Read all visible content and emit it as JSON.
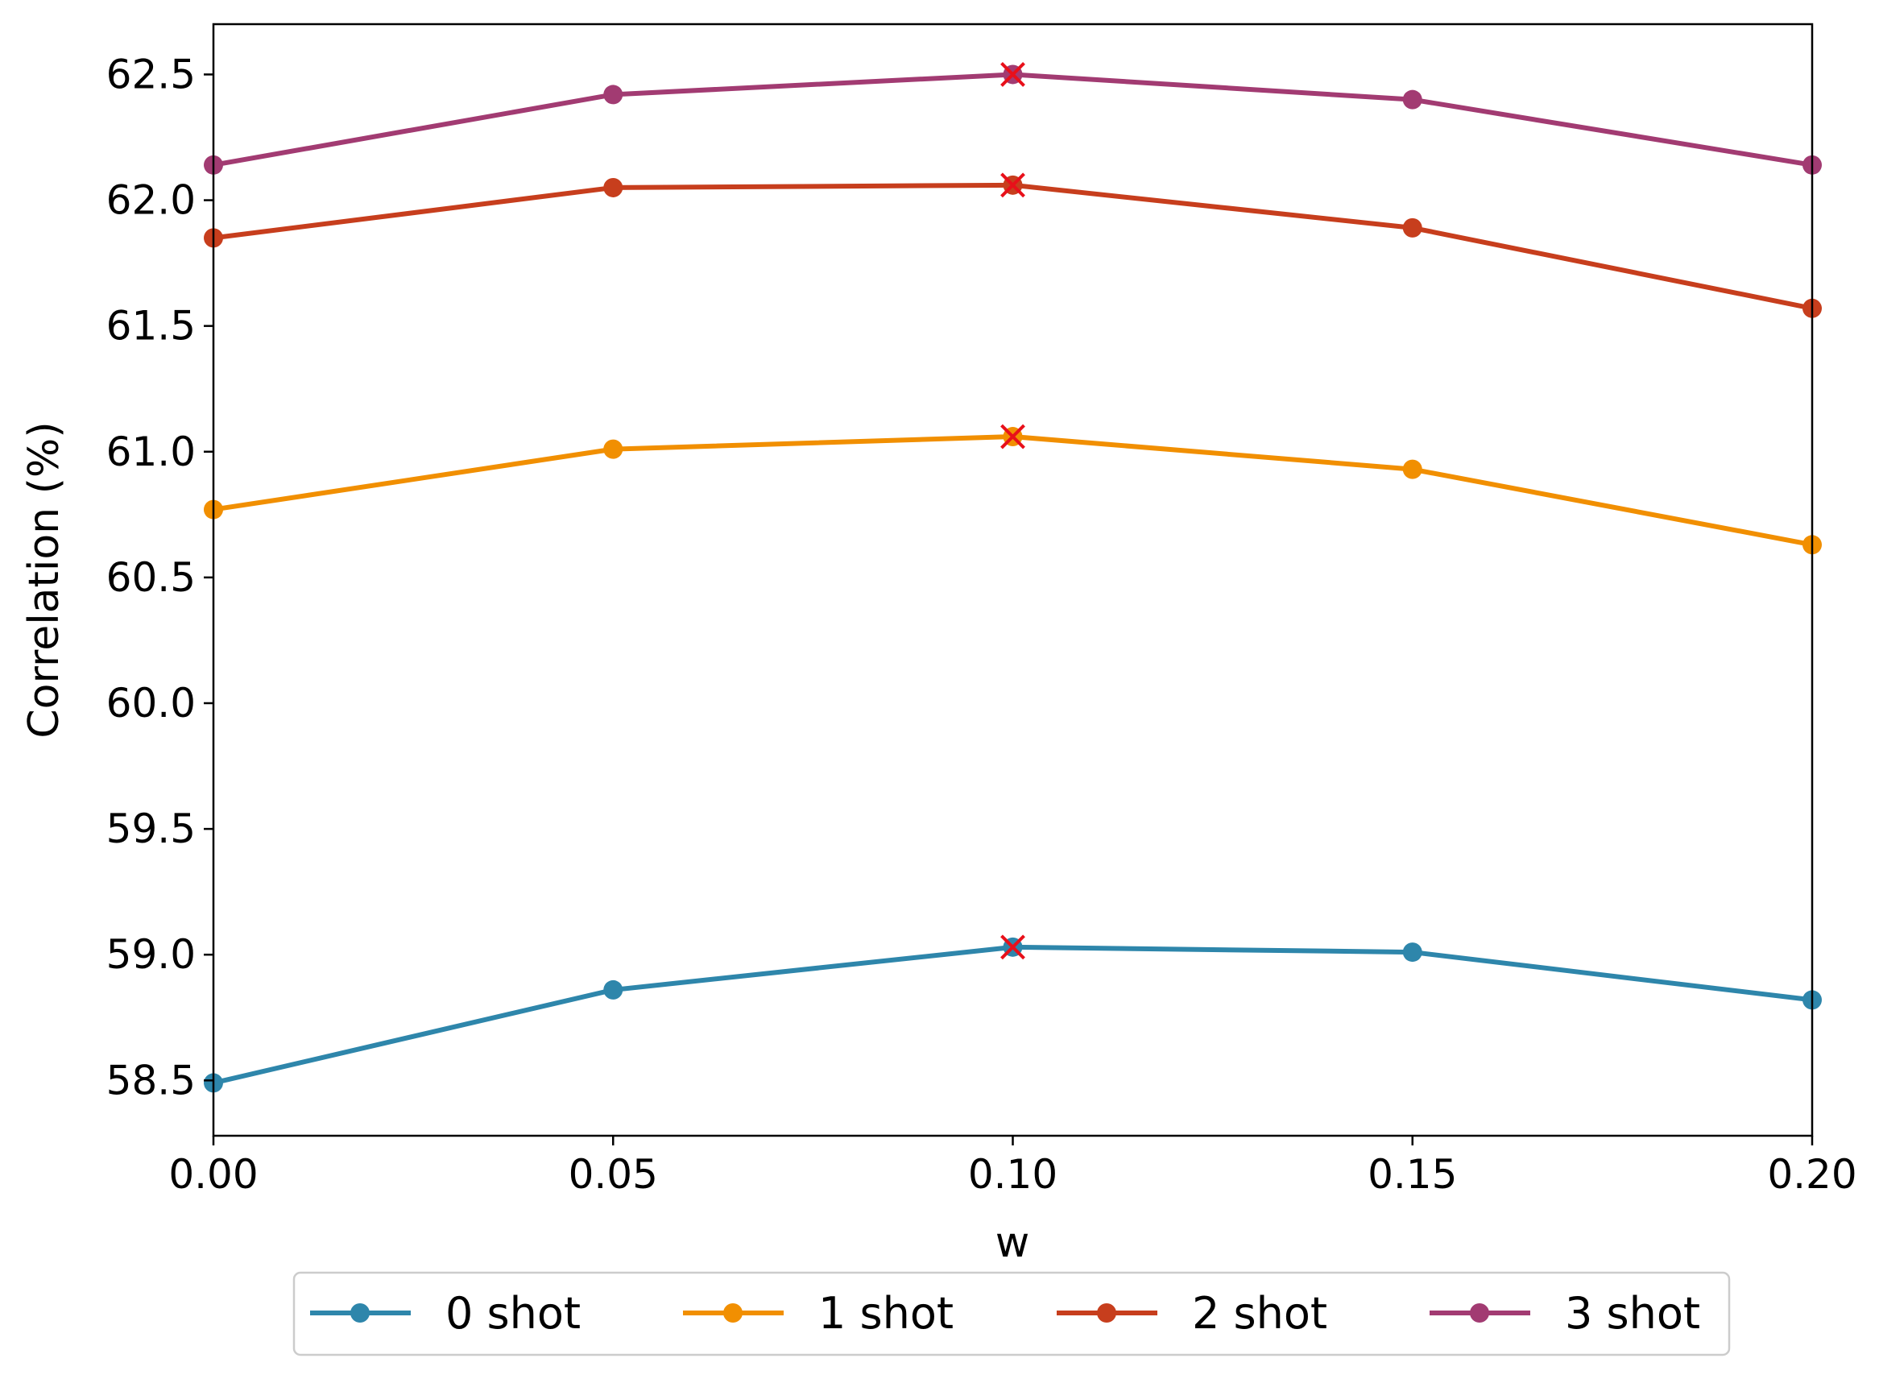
{
  "chart_data": {
    "type": "line",
    "title": "",
    "xlabel": "w",
    "ylabel": "Correlation (%)",
    "x": [
      0.0,
      0.05,
      0.1,
      0.15,
      0.2
    ],
    "x_tick_labels": [
      "0.00",
      "0.05",
      "0.10",
      "0.15",
      "0.20"
    ],
    "y_tick_values": [
      58.5,
      59.0,
      59.5,
      60.0,
      60.5,
      61.0,
      61.5,
      62.0,
      62.5
    ],
    "y_tick_labels": [
      "58.5",
      "59.0",
      "59.5",
      "60.0",
      "60.5",
      "61.0",
      "61.5",
      "62.0",
      "62.5"
    ],
    "xlim": [
      0.0,
      0.2
    ],
    "ylim": [
      58.28,
      62.7
    ],
    "grid": false,
    "legend_placement": "bottom-center",
    "series": [
      {
        "name": "0 shot",
        "color": "#2e86ab",
        "values": [
          58.49,
          58.86,
          59.03,
          59.01,
          58.82
        ]
      },
      {
        "name": "1 shot",
        "color": "#f18f01",
        "values": [
          60.77,
          61.01,
          61.06,
          60.93,
          60.63
        ]
      },
      {
        "name": "2 shot",
        "color": "#c73e1d",
        "values": [
          61.85,
          62.05,
          62.06,
          61.89,
          61.57
        ]
      },
      {
        "name": "3 shot",
        "color": "#a23b72",
        "values": [
          62.14,
          62.42,
          62.5,
          62.4,
          62.14
        ]
      }
    ],
    "best_marker": {
      "symbol": "x",
      "color": "#e8101a",
      "x": 0.1
    }
  }
}
